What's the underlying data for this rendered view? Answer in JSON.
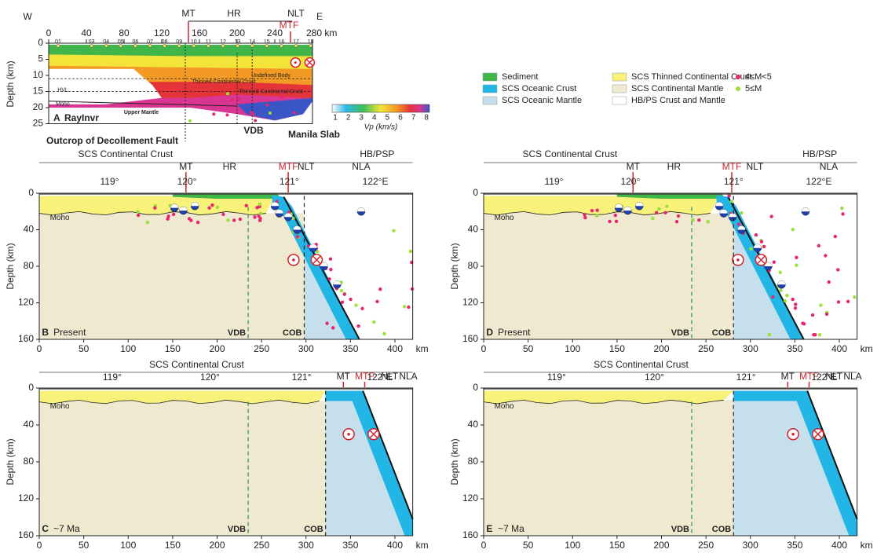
{
  "panel_a": {
    "letter": "A",
    "method": "RayInvr",
    "west": "W",
    "east": "E",
    "markers": {
      "mt": "MT",
      "hr": "HR",
      "nlt": "NLT",
      "mtf": "MTF"
    },
    "x_ticks": [
      "0",
      "40",
      "80",
      "120",
      "160",
      "200",
      "240",
      "280 km"
    ],
    "y_label": "Depth (km)",
    "y_ticks": [
      "0",
      "5",
      "10",
      "15",
      "20",
      "25"
    ],
    "obs": [
      "01",
      "03",
      "04",
      "05",
      "06",
      "07",
      "08",
      "09",
      "10",
      "11",
      "12",
      "13",
      "14",
      "15",
      "16",
      "17",
      "18"
    ],
    "annotations": {
      "moho": "Moho",
      "hvl": "HVL",
      "upper_mantle": "Upper Mantle",
      "vdb": "VDB",
      "thinned": "Thinned Continental Crust",
      "undefined": "Undefined Body",
      "thinned2": "Thinned Continental Crust",
      "slab": "Manila Slab",
      "fault": "Outcrop of Decollement Fault"
    }
  },
  "colorbar": {
    "ticks": [
      "1",
      "2",
      "3",
      "4",
      "5",
      "6",
      "7",
      "8"
    ],
    "label": "Vp (km/s)"
  },
  "legend": [
    {
      "label": "Sediment",
      "color": "#3fb54a",
      "shape": "box"
    },
    {
      "label": "SCS Oceanic Crust",
      "color": "#22b6e6",
      "shape": "box"
    },
    {
      "label": "SCS Oceanic Mantle",
      "color": "#c5e0ec",
      "shape": "box"
    },
    {
      "label": "SCS Thinned Continental Crust",
      "color": "#f8f17a",
      "shape": "box"
    },
    {
      "label": "SCS Continental Mantle",
      "color": "#efe9cf",
      "shape": "box"
    },
    {
      "label": "HB/PS Crust and Mantle",
      "color": "#ffffff",
      "shape": "box"
    },
    {
      "label": "4≤M<5",
      "color": "#e8256f",
      "shape": "dot"
    },
    {
      "label": "5≤M",
      "color": "#9be03a",
      "shape": "dot"
    }
  ],
  "panel_b": {
    "letter": "B",
    "age": "Present",
    "units": [
      "SCS Continental Crust",
      "HB/PSP"
    ],
    "markers": [
      "MT",
      "HR",
      "MTF",
      "NLT",
      "NLA"
    ],
    "lon_ticks": [
      "119°",
      "120°",
      "121°",
      "122°E"
    ],
    "x_ticks": [
      "0",
      "50",
      "100",
      "150",
      "200",
      "250",
      "300",
      "350",
      "400"
    ],
    "x_unit": "km",
    "y_label": "Depth (km)",
    "y_ticks": [
      "0",
      "40",
      "80",
      "120",
      "160"
    ],
    "moho": "Moho",
    "vdb": "VDB",
    "cob": "COB"
  },
  "panel_c": {
    "letter": "C",
    "age": "~7 Ma",
    "units": [
      "SCS Continental Crust"
    ],
    "markers": [
      "MT",
      "MTF",
      "NLT",
      "NLA"
    ],
    "lon_ticks": [
      "119°",
      "120°",
      "121°",
      "122°E"
    ],
    "x_ticks": [
      "0",
      "50",
      "100",
      "150",
      "200",
      "250",
      "300",
      "350",
      "400"
    ],
    "x_unit": "km",
    "y_label": "Depth (km)",
    "y_ticks": [
      "0",
      "40",
      "80",
      "120",
      "160"
    ],
    "moho": "Moho",
    "vdb": "VDB",
    "cob": "COB"
  },
  "panel_d": {
    "letter": "D",
    "age": "Present",
    "units": [
      "SCS Continental Crust",
      "HB/PSP"
    ],
    "markers": [
      "MT",
      "HR",
      "MTF",
      "NLT",
      "NLA"
    ],
    "lon_ticks": [
      "119°",
      "120°",
      "121°",
      "122°E"
    ],
    "x_ticks": [
      "0",
      "50",
      "100",
      "150",
      "200",
      "250",
      "300",
      "350",
      "400"
    ],
    "x_unit": "km",
    "y_label": "Depth (km)",
    "y_ticks": [
      "0",
      "40",
      "80",
      "120",
      "160"
    ],
    "moho": "Moho",
    "vdb": "VDB",
    "cob": "COB"
  },
  "panel_e": {
    "letter": "E",
    "age": "~7 Ma",
    "units": [
      "SCS Continental Crust"
    ],
    "markers": [
      "MT",
      "MTF",
      "NLT",
      "NLA"
    ],
    "lon_ticks": [
      "119°",
      "120°",
      "121°",
      "122°E"
    ],
    "x_ticks": [
      "0",
      "50",
      "100",
      "150",
      "200",
      "250",
      "300",
      "350",
      "400"
    ],
    "x_unit": "km",
    "y_label": "Depth (km)",
    "y_ticks": [
      "0",
      "40",
      "80",
      "120",
      "160"
    ],
    "moho": "Moho",
    "vdb": "VDB",
    "cob": "COB"
  }
}
